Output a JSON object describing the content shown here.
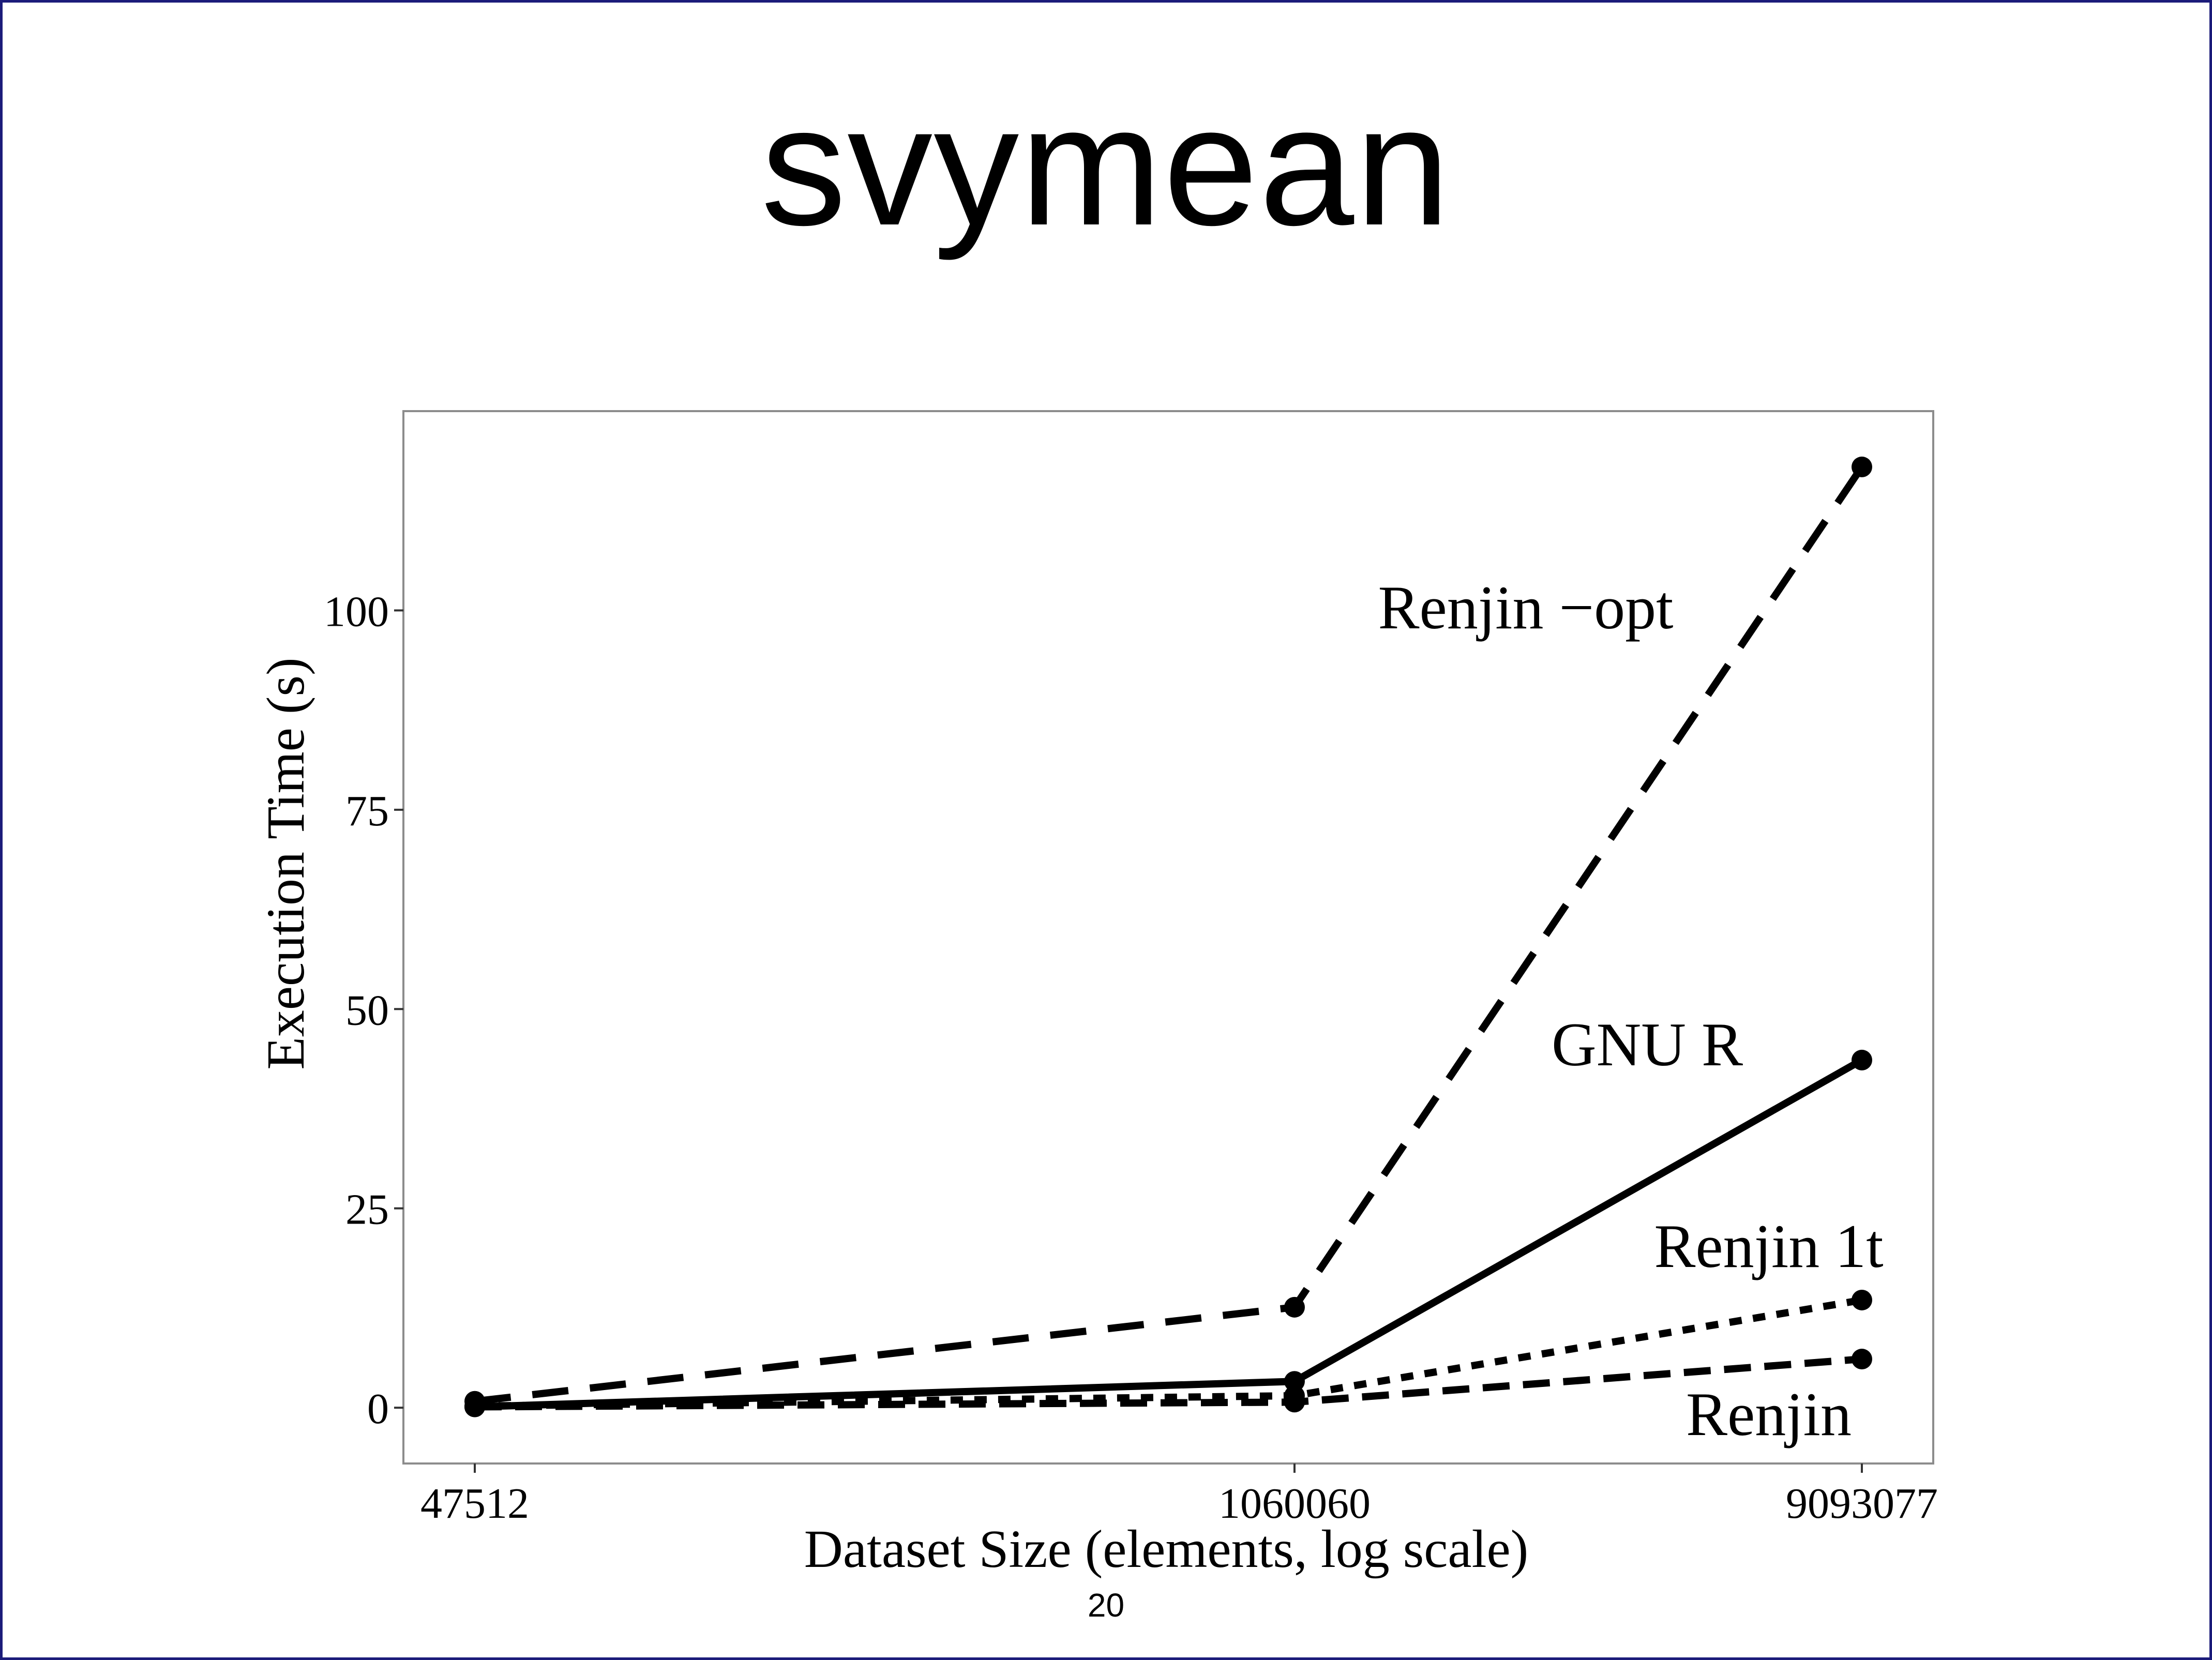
{
  "slide": {
    "title": "svymean",
    "page_number": "20"
  },
  "chart_data": {
    "type": "line",
    "title": "",
    "xlabel": "Dataset Size (elements, log scale)",
    "ylabel": "Execution Time (s)",
    "x_scale": "log",
    "x": [
      47512,
      1060060,
      9093077
    ],
    "x_tick_labels": [
      "47512",
      "1060060",
      "9093077"
    ],
    "y_ticks": [
      0,
      25,
      50,
      75,
      100
    ],
    "y_tick_labels": [
      "0",
      "25",
      "50",
      "75",
      "100"
    ],
    "ylim": [
      -7,
      125
    ],
    "grid": false,
    "legend": "direct labels",
    "series": [
      {
        "name": "Renjin −opt",
        "values": [
          0.8,
          12.6,
          118
        ],
        "line": "long-dash"
      },
      {
        "name": "GNU R",
        "values": [
          0.1,
          3.3,
          43.6
        ],
        "line": "solid"
      },
      {
        "name": "Renjin 1t",
        "values": [
          0.2,
          1.5,
          13.5
        ],
        "line": "dotted"
      },
      {
        "name": "Renjin",
        "values": [
          0.1,
          0.7,
          6.1
        ],
        "line": "dashed"
      }
    ],
    "colors": {
      "line": "#000000",
      "frame": "#8c8c8c"
    }
  }
}
